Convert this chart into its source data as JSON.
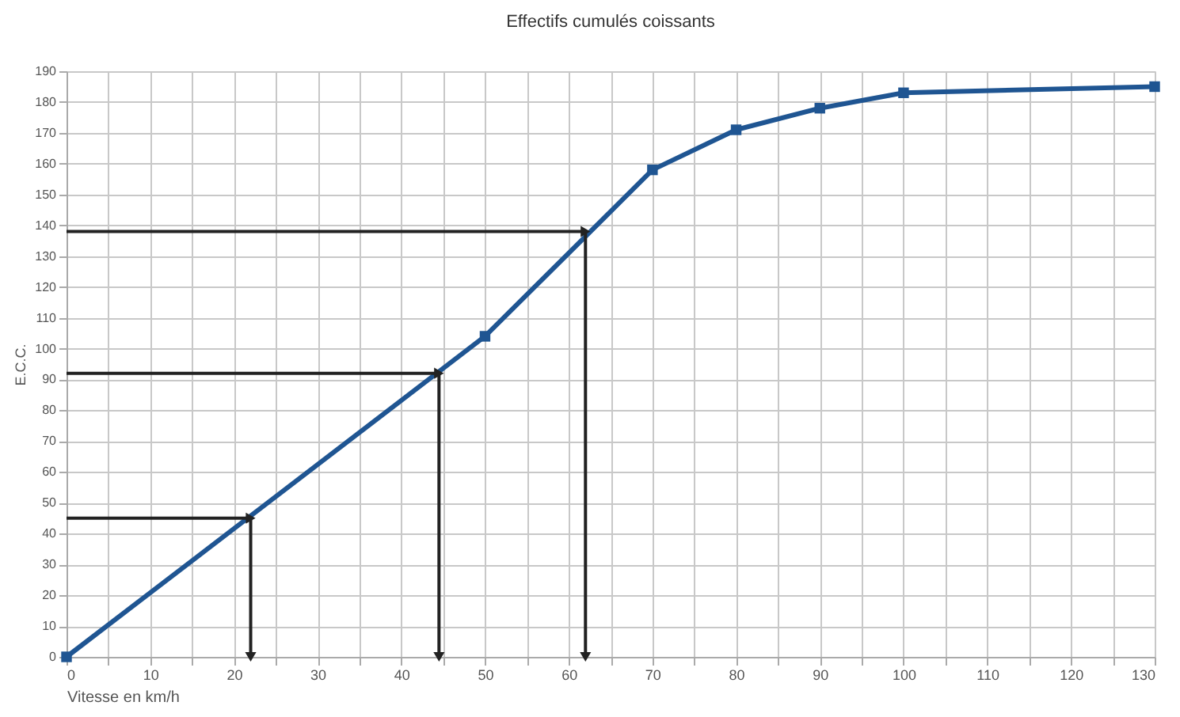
{
  "chart_data": {
    "type": "line",
    "title": "Effectifs cumulés coissants",
    "xlabel": "Vitesse en km/h",
    "ylabel": "E.C.C.",
    "x": [
      0,
      50,
      70,
      80,
      90,
      100,
      130
    ],
    "series": [
      {
        "color": "#1f5592",
        "values": [
          0,
          104,
          158,
          171,
          178,
          183,
          185
        ],
        "marker": "square"
      },
      {
        "type": "line",
        "color": "#222222",
        "x": [
          0,
          22,
          22
        ],
        "values": [
          45,
          45,
          0
        ],
        "marker": "triangle"
      },
      {
        "type": "line",
        "color": "#222222",
        "x": [
          0,
          44.5,
          44.5
        ],
        "values": [
          92,
          92,
          0
        ],
        "marker": "triangle"
      },
      {
        "type": "line",
        "color": "#222222",
        "x": [
          0,
          62,
          62
        ],
        "values": [
          138,
          138,
          0
        ],
        "marker": "triangle"
      }
    ],
    "xlim": [
      0,
      130
    ],
    "ylim": [
      0,
      190
    ],
    "xticks": [
      0,
      {
        "value": 5,
        "label": null
      },
      10,
      {
        "value": 15,
        "label": null
      },
      20,
      {
        "value": 25,
        "label": null
      },
      30,
      {
        "value": 35,
        "label": null
      },
      40,
      {
        "value": 45,
        "label": null
      },
      50,
      {
        "value": 55,
        "label": null
      },
      60,
      {
        "value": 65,
        "label": null
      },
      70,
      {
        "value": 75,
        "label": null
      },
      80,
      {
        "value": 85,
        "label": null
      },
      90,
      {
        "value": 95,
        "label": null
      },
      100,
      {
        "value": 105,
        "label": null
      },
      110,
      {
        "value": 115,
        "label": null
      },
      120,
      {
        "value": 125,
        "label": null
      },
      130
    ],
    "yticks": [
      0,
      10,
      20,
      30,
      40,
      50,
      60,
      70,
      80,
      90,
      100,
      110,
      120,
      130,
      140,
      150,
      160,
      170,
      180,
      190
    ],
    "grid": true,
    "line_style": "solid"
  }
}
